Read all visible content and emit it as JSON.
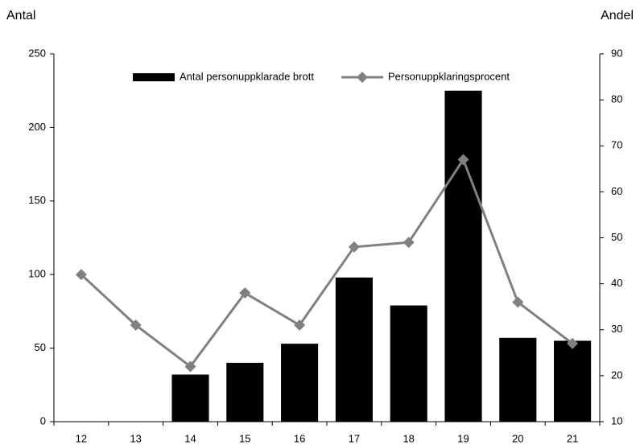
{
  "chart_data": {
    "type": "bar_line",
    "y_axis_label": "Antal",
    "y2_axis_label": "Andel",
    "categories": [
      "12",
      "13",
      "14",
      "15",
      "16",
      "17",
      "18",
      "19",
      "20",
      "21"
    ],
    "series": [
      {
        "name": "Antal personuppklarade brott",
        "color": "#000000",
        "type": "bar",
        "values": [
          0,
          0,
          32,
          40,
          53,
          98,
          79,
          225,
          57,
          55
        ]
      },
      {
        "name": "Personuppklaringsprocent",
        "color": "#808080",
        "type": "line",
        "axis": "y2",
        "values": [
          42,
          31,
          22,
          38,
          31,
          48,
          49,
          67,
          36,
          27
        ]
      }
    ],
    "ylim": [
      0,
      250
    ],
    "yticks": [
      0,
      50,
      100,
      150,
      200,
      250
    ],
    "y2lim": [
      10,
      90
    ],
    "y2ticks": [
      10,
      20,
      30,
      40,
      50,
      60,
      70,
      80,
      90
    ],
    "legend": "top"
  }
}
